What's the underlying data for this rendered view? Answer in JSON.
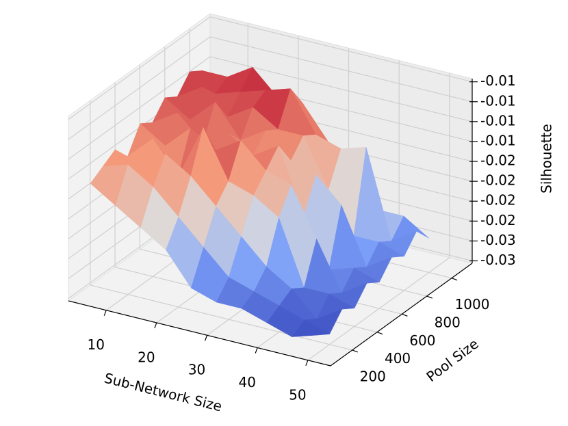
{
  "chart_data": {
    "type": "surface3d",
    "xlabel": "Sub-Network Size",
    "ylabel": "Pool Size",
    "zlabel": "Silhouette",
    "x": [
      5,
      10,
      15,
      20,
      25,
      30,
      35,
      40,
      45,
      50
    ],
    "y": [
      100,
      200,
      300,
      400,
      500,
      600,
      700,
      800,
      900,
      1000
    ],
    "z": [
      [
        -0.016,
        -0.015,
        -0.014,
        -0.016,
        -0.013,
        -0.014,
        -0.012,
        -0.013,
        -0.011,
        -0.012
      ],
      [
        -0.018,
        -0.014,
        -0.016,
        -0.013,
        -0.015,
        -0.012,
        -0.014,
        -0.011,
        -0.013,
        -0.012
      ],
      [
        -0.02,
        -0.016,
        -0.013,
        -0.017,
        -0.012,
        -0.015,
        -0.011,
        -0.014,
        -0.012,
        -0.01
      ],
      [
        -0.022,
        -0.019,
        -0.015,
        -0.01,
        -0.014,
        -0.013,
        -0.015,
        -0.012,
        -0.011,
        -0.013
      ],
      [
        -0.026,
        -0.022,
        -0.018,
        -0.016,
        -0.012,
        -0.015,
        -0.013,
        -0.014,
        -0.01,
        -0.013
      ],
      [
        -0.027,
        -0.025,
        -0.021,
        -0.017,
        -0.015,
        -0.013,
        -0.016,
        -0.014,
        -0.015,
        -0.017
      ],
      [
        -0.027,
        -0.026,
        -0.024,
        -0.019,
        -0.016,
        -0.021,
        -0.017,
        -0.02,
        -0.016,
        -0.018
      ],
      [
        -0.028,
        -0.027,
        -0.026,
        -0.027,
        -0.022,
        -0.027,
        -0.02,
        -0.025,
        -0.015,
        -0.024
      ],
      [
        -0.029,
        -0.028,
        -0.029,
        -0.027,
        -0.028,
        -0.026,
        -0.027,
        -0.025,
        -0.026,
        -0.024
      ],
      [
        -0.028,
        -0.029,
        -0.027,
        -0.028,
        -0.026,
        -0.027,
        -0.025,
        -0.026,
        -0.024,
        -0.026
      ]
    ],
    "xlim": [
      2.5,
      54.5
    ],
    "ylim": [
      25,
      1165
    ],
    "zlim": [
      -0.0303,
      -0.0071
    ],
    "xticks": [
      10,
      20,
      30,
      40,
      50
    ],
    "yticks": [
      200,
      400,
      600,
      800,
      1000
    ],
    "zticks": [
      {
        "value": -0.03,
        "label": "-0.03"
      },
      {
        "value": -0.0275,
        "label": "-0.03"
      },
      {
        "value": -0.025,
        "label": "-0.02"
      },
      {
        "value": -0.0225,
        "label": "-0.02"
      },
      {
        "value": -0.02,
        "label": "-0.02"
      },
      {
        "value": -0.0175,
        "label": "-0.02"
      },
      {
        "value": -0.015,
        "label": "-0.01"
      },
      {
        "value": -0.0125,
        "label": "-0.01"
      },
      {
        "value": -0.01,
        "label": "-0.01"
      },
      {
        "value": -0.0075,
        "label": "-0.01"
      }
    ],
    "cmap": "coolwarm",
    "grid": true
  }
}
